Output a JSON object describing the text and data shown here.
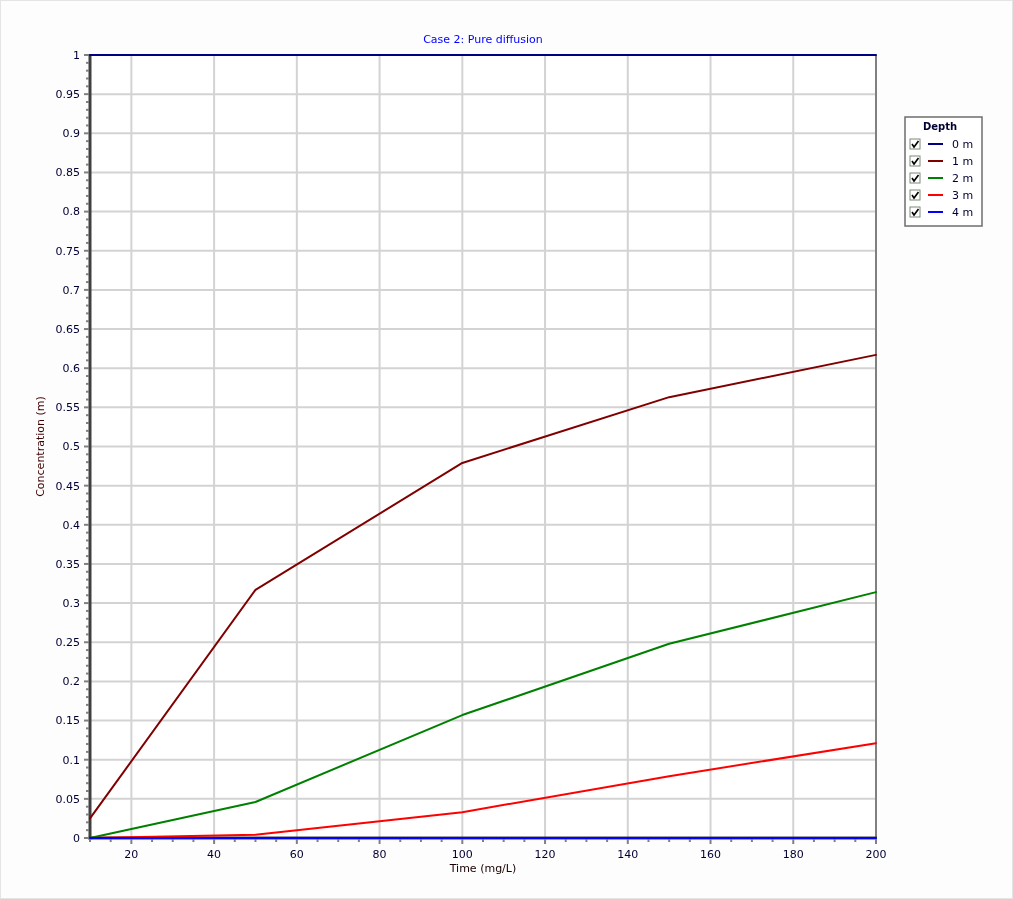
{
  "chart_data": {
    "type": "line",
    "title": "Case 2: Pure diffusion",
    "xlabel": "Time (mg/L)",
    "ylabel": "Concentration (m)",
    "legend_title": "Depth",
    "x": [
      10,
      50,
      100,
      150,
      200
    ],
    "series": [
      {
        "name": "0 m",
        "color": "#000080",
        "values": [
          1,
          1,
          1,
          1,
          1
        ]
      },
      {
        "name": "1 m",
        "color": "#800000",
        "values": [
          0.025,
          0.317,
          0.479,
          0.563,
          0.617
        ]
      },
      {
        "name": "2 m",
        "color": "#008000",
        "values": [
          0,
          0.046,
          0.157,
          0.248,
          0.314
        ]
      },
      {
        "name": "3 m",
        "color": "#ff0000",
        "values": [
          0,
          0.004,
          0.033,
          0.079,
          0.121
        ]
      },
      {
        "name": "4 m",
        "color": "#0000ff",
        "values": [
          0,
          0,
          0,
          0,
          0
        ]
      }
    ],
    "xlim": [
      10,
      200
    ],
    "xticks": [
      {
        "value": 10,
        "label": null
      },
      {
        "value": 15,
        "label": null
      },
      20,
      {
        "value": 25,
        "label": null
      },
      {
        "value": 30,
        "label": null
      },
      {
        "value": 35,
        "label": null
      },
      40,
      {
        "value": 45,
        "label": null
      },
      {
        "value": 50,
        "label": null
      },
      {
        "value": 55,
        "label": null
      },
      60,
      {
        "value": 65,
        "label": null
      },
      {
        "value": 70,
        "label": null
      },
      {
        "value": 75,
        "label": null
      },
      80,
      {
        "value": 85,
        "label": null
      },
      {
        "value": 90,
        "label": null
      },
      {
        "value": 95,
        "label": null
      },
      100,
      {
        "value": 105,
        "label": null
      },
      {
        "value": 110,
        "label": null
      },
      {
        "value": 115,
        "label": null
      },
      120,
      {
        "value": 125,
        "label": null
      },
      {
        "value": 130,
        "label": null
      },
      {
        "value": 135,
        "label": null
      },
      140,
      {
        "value": 145,
        "label": null
      },
      {
        "value": 150,
        "label": null
      },
      {
        "value": 155,
        "label": null
      },
      160,
      {
        "value": 165,
        "label": null
      },
      {
        "value": 170,
        "label": null
      },
      {
        "value": 175,
        "label": null
      },
      180,
      {
        "value": 185,
        "label": null
      },
      {
        "value": 190,
        "label": null
      },
      {
        "value": 195,
        "label": null
      },
      200
    ],
    "ylim": [
      0,
      1
    ],
    "yticks": [
      0,
      {
        "value": 0.01,
        "label": null
      },
      {
        "value": 0.02,
        "label": null
      },
      {
        "value": 0.03,
        "label": null
      },
      {
        "value": 0.04,
        "label": null
      },
      0.05,
      {
        "value": 0.06,
        "label": null
      },
      {
        "value": 0.07,
        "label": null
      },
      {
        "value": 0.08,
        "label": null
      },
      {
        "value": 0.09,
        "label": null
      },
      0.1,
      {
        "value": 0.11,
        "label": null
      },
      {
        "value": 0.12,
        "label": null
      },
      {
        "value": 0.13,
        "label": null
      },
      {
        "value": 0.14,
        "label": null
      },
      0.15,
      {
        "value": 0.16,
        "label": null
      },
      {
        "value": 0.17,
        "label": null
      },
      {
        "value": 0.18,
        "label": null
      },
      {
        "value": 0.19,
        "label": null
      },
      0.2,
      {
        "value": 0.21,
        "label": null
      },
      {
        "value": 0.22,
        "label": null
      },
      {
        "value": 0.23,
        "label": null
      },
      {
        "value": 0.24,
        "label": null
      },
      0.25,
      {
        "value": 0.26,
        "label": null
      },
      {
        "value": 0.27,
        "label": null
      },
      {
        "value": 0.28,
        "label": null
      },
      {
        "value": 0.29,
        "label": null
      },
      0.3,
      {
        "value": 0.31,
        "label": null
      },
      {
        "value": 0.32,
        "label": null
      },
      {
        "value": 0.33,
        "label": null
      },
      {
        "value": 0.34,
        "label": null
      },
      0.35,
      {
        "value": 0.36,
        "label": null
      },
      {
        "value": 0.37,
        "label": null
      },
      {
        "value": 0.38,
        "label": null
      },
      {
        "value": 0.39,
        "label": null
      },
      0.4,
      {
        "value": 0.41,
        "label": null
      },
      {
        "value": 0.42,
        "label": null
      },
      {
        "value": 0.43,
        "label": null
      },
      {
        "value": 0.44,
        "label": null
      },
      0.45,
      {
        "value": 0.46,
        "label": null
      },
      {
        "value": 0.47,
        "label": null
      },
      {
        "value": 0.48,
        "label": null
      },
      {
        "value": 0.49,
        "label": null
      },
      0.5,
      {
        "value": 0.51,
        "label": null
      },
      {
        "value": 0.52,
        "label": null
      },
      {
        "value": 0.53,
        "label": null
      },
      {
        "value": 0.54,
        "label": null
      },
      0.55,
      {
        "value": 0.56,
        "label": null
      },
      {
        "value": 0.57,
        "label": null
      },
      {
        "value": 0.58,
        "label": null
      },
      {
        "value": 0.59,
        "label": null
      },
      0.6,
      {
        "value": 0.61,
        "label": null
      },
      {
        "value": 0.62,
        "label": null
      },
      {
        "value": 0.63,
        "label": null
      },
      {
        "value": 0.64,
        "label": null
      },
      0.65,
      {
        "value": 0.66,
        "label": null
      },
      {
        "value": 0.67,
        "label": null
      },
      {
        "value": 0.68,
        "label": null
      },
      {
        "value": 0.69,
        "label": null
      },
      0.7,
      {
        "value": 0.71,
        "label": null
      },
      {
        "value": 0.72,
        "label": null
      },
      {
        "value": 0.73,
        "label": null
      },
      {
        "value": 0.74,
        "label": null
      },
      0.75,
      {
        "value": 0.76,
        "label": null
      },
      {
        "value": 0.77,
        "label": null
      },
      {
        "value": 0.78,
        "label": null
      },
      {
        "value": 0.79,
        "label": null
      },
      0.8,
      {
        "value": 0.81,
        "label": null
      },
      {
        "value": 0.82,
        "label": null
      },
      {
        "value": 0.83,
        "label": null
      },
      {
        "value": 0.84,
        "label": null
      },
      0.85,
      {
        "value": 0.86,
        "label": null
      },
      {
        "value": 0.87,
        "label": null
      },
      {
        "value": 0.88,
        "label": null
      },
      {
        "value": 0.89,
        "label": null
      },
      0.9,
      {
        "value": 0.91,
        "label": null
      },
      {
        "value": 0.92,
        "label": null
      },
      {
        "value": 0.93,
        "label": null
      },
      {
        "value": 0.94,
        "label": null
      },
      0.95,
      {
        "value": 0.96,
        "label": null
      },
      {
        "value": 0.97,
        "label": null
      },
      {
        "value": 0.98,
        "label": null
      },
      {
        "value": 0.99,
        "label": null
      },
      1
    ],
    "grid": true,
    "legend": "right"
  }
}
